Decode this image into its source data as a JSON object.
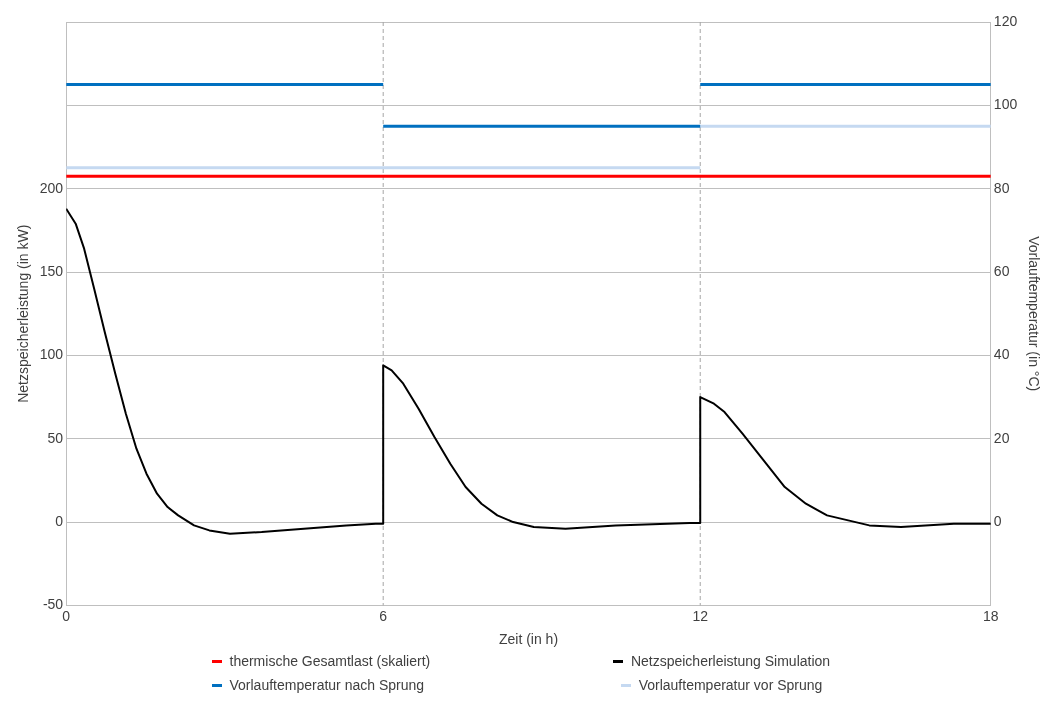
{
  "chart_data": {
    "type": "line",
    "xlabel": "Zeit (in h)",
    "ylabel": "Netzspeicherleistung (in kW)",
    "y2label": "Vorlauftemperatur (in °C)",
    "xlim": [
      0,
      17.5
    ],
    "xticks": [
      0,
      6,
      12,
      {
        "value": 17.5,
        "label": "18"
      }
    ],
    "ylim": [
      -50,
      300
    ],
    "yticks": [
      -50,
      0,
      50,
      100,
      150,
      200,
      {
        "value": 250,
        "label": null
      },
      {
        "value": 300,
        "label": null
      }
    ],
    "y2lim": [
      -20,
      120
    ],
    "y2ticks": [
      0,
      20,
      40,
      60,
      80,
      100,
      120
    ],
    "grid": "y",
    "legend": "bottom",
    "marker": "none",
    "line_style": "solid",
    "ref_lines": [
      {
        "axis": "x",
        "value": 6,
        "color": "#a6a6a6",
        "line_style": "dashed"
      },
      {
        "axis": "x",
        "value": 12,
        "color": "#a6a6a6",
        "line_style": "dashed"
      }
    ],
    "series": [
      {
        "name": "thermische Gesamtlast (skaliert)",
        "color": "#ff0000",
        "axis": "y2",
        "x": [
          0,
          17.5
        ],
        "values": [
          83,
          83
        ]
      },
      {
        "name": "Netzspeicherleistung Simulation",
        "color": "#000000",
        "x": [
          0,
          0.18,
          0.34,
          0.53,
          0.73,
          0.93,
          1.13,
          1.33,
          1.52,
          1.72,
          1.92,
          2.12,
          2.42,
          2.71,
          3.1,
          3.7,
          4.5,
          5.3,
          5.86,
          6,
          6,
          6.16,
          6.38,
          6.67,
          6.97,
          7.27,
          7.56,
          7.86,
          8.16,
          8.46,
          8.85,
          9.45,
          10.4,
          11.8,
          12,
          12,
          12.26,
          12.46,
          12.8,
          13.2,
          13.6,
          14,
          14.4,
          14.8,
          15.2,
          15.8,
          16.8,
          17.5
        ],
        "values": [
          188,
          179,
          164,
          140,
          114,
          89,
          65,
          44,
          29,
          17,
          9,
          4,
          -2,
          -5,
          -7,
          -6,
          -4,
          -2,
          -1,
          -1,
          94,
          91,
          83,
          68,
          51,
          35,
          21,
          11,
          4,
          0,
          -3,
          -4,
          -2,
          -0.5,
          -0.5,
          75,
          71,
          66,
          53,
          37,
          21,
          11,
          4,
          1,
          -2,
          -3,
          -1,
          -1
        ]
      },
      {
        "name": "Vorlauftemperatur nach Sprung",
        "color": "#0070c0",
        "axis": "y2",
        "x": [
          0,
          6,
          null,
          6,
          12,
          null,
          12,
          17.5
        ],
        "values": [
          105,
          105,
          null,
          95,
          95,
          null,
          105,
          105
        ]
      },
      {
        "name": "Vorlauftemperatur vor Sprung",
        "color": "#c5d9f1",
        "axis": "y2",
        "x": [
          0,
          12,
          null,
          12,
          17.5
        ],
        "values": [
          85,
          85,
          null,
          95,
          95
        ]
      }
    ]
  }
}
